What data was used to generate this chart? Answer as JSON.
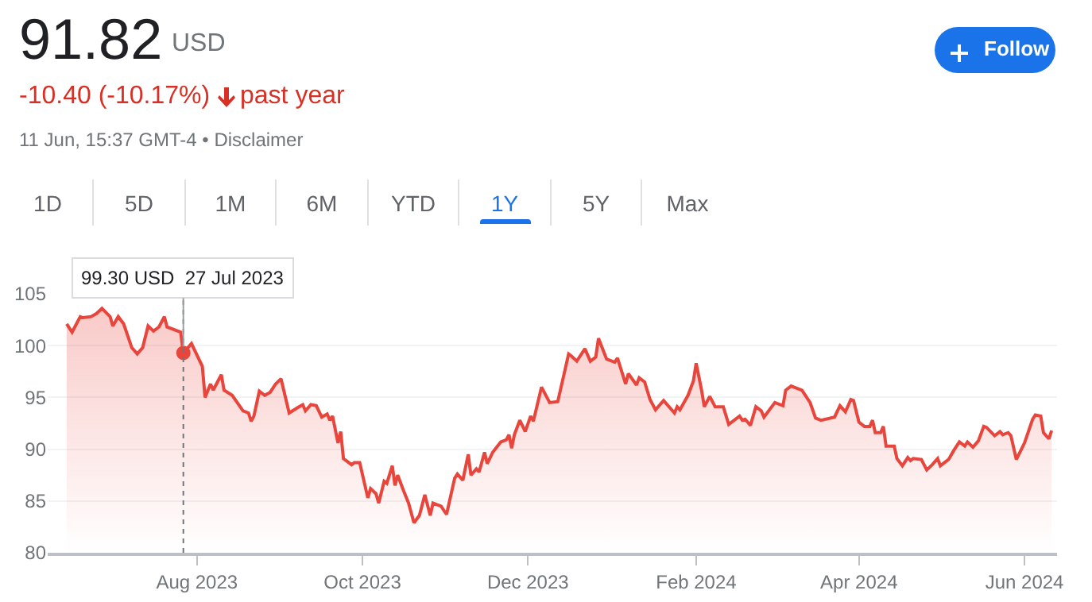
{
  "chart_data": {
    "type": "area",
    "title": "91.82",
    "subtitle": "-10.40 (-10.17%)",
    "annotations": [
      "USD",
      "past year",
      "11 Jun, 15:37 GMT-4 • Disclaimer",
      "Follow",
      "1D",
      "5D",
      "1M",
      "6M",
      "YTD",
      "1Y",
      "5Y",
      "Max",
      {
        "text": "99.30 USD  27 Jul 2023",
        "x": "2023-07-27",
        "y": 99.3
      }
    ],
    "series": [
      {
        "type": "area",
        "color": "#e8453c",
        "x": [
          "2023-06-14",
          "2023-06-16",
          "2023-06-19",
          "2023-06-20",
          "2023-06-23",
          "2023-06-25",
          "2023-06-27",
          "2023-06-30",
          "2023-07-01",
          "2023-07-03",
          "2023-07-05",
          "2023-07-08",
          "2023-07-10",
          "2023-07-12",
          "2023-07-14",
          "2023-07-16",
          "2023-07-18",
          "2023-07-20",
          "2023-07-21",
          "2023-07-25",
          "2023-07-26",
          "2023-07-27",
          "2023-07-30",
          "2023-08-03",
          "2023-08-04",
          "2023-08-06",
          "2023-08-07",
          "2023-08-10",
          "2023-08-11",
          "2023-08-14",
          "2023-08-18",
          "2023-08-20",
          "2023-08-21",
          "2023-08-22",
          "2023-08-24",
          "2023-08-26",
          "2023-08-28",
          "2023-08-30",
          "2023-09-01",
          "2023-09-04",
          "2023-09-07",
          "2023-09-09",
          "2023-09-10",
          "2023-09-12",
          "2023-09-14",
          "2023-09-16",
          "2023-09-18",
          "2023-09-19",
          "2023-09-20",
          "2023-09-22",
          "2023-09-23",
          "2023-09-24",
          "2023-09-27",
          "2023-09-28",
          "2023-09-30",
          "2023-10-03",
          "2023-10-04",
          "2023-10-06",
          "2023-10-07",
          "2023-10-09",
          "2023-10-10",
          "2023-10-12",
          "2023-10-13",
          "2023-10-14",
          "2023-10-16",
          "2023-10-18",
          "2023-10-20",
          "2023-10-22",
          "2023-10-24",
          "2023-10-26",
          "2023-10-27",
          "2023-10-30",
          "2023-11-01",
          "2023-11-04",
          "2023-11-05",
          "2023-11-07",
          "2023-11-09",
          "2023-11-10",
          "2023-11-12",
          "2023-11-13",
          "2023-11-15",
          "2023-11-16",
          "2023-11-18",
          "2023-11-21",
          "2023-11-23",
          "2023-11-24",
          "2023-11-25",
          "2023-11-26",
          "2023-11-28",
          "2023-11-30",
          "2023-12-02",
          "2023-12-03",
          "2023-12-06",
          "2023-12-09",
          "2023-12-12",
          "2023-12-16",
          "2023-12-17",
          "2023-12-19",
          "2023-12-22",
          "2023-12-24",
          "2023-12-26",
          "2023-12-27",
          "2023-12-30",
          "2024-01-02",
          "2024-01-03",
          "2024-01-06",
          "2024-01-07",
          "2024-01-10",
          "2024-01-11",
          "2024-01-13",
          "2024-01-15",
          "2024-01-17",
          "2024-01-20",
          "2024-01-24",
          "2024-01-25",
          "2024-01-26",
          "2024-01-29",
          "2024-01-31",
          "2024-02-01",
          "2024-02-03",
          "2024-02-04",
          "2024-02-06",
          "2024-02-08",
          "2024-02-11",
          "2024-02-13",
          "2024-02-17",
          "2024-02-18",
          "2024-02-19",
          "2024-02-21",
          "2024-02-23",
          "2024-02-25",
          "2024-02-26",
          "2024-03-01",
          "2024-03-04",
          "2024-03-05",
          "2024-03-07",
          "2024-03-11",
          "2024-03-14",
          "2024-03-16",
          "2024-03-18",
          "2024-03-23",
          "2024-03-25",
          "2024-03-27",
          "2024-03-29",
          "2024-03-30",
          "2024-04-01",
          "2024-04-03",
          "2024-04-05",
          "2024-04-06",
          "2024-04-07",
          "2024-04-09",
          "2024-04-10",
          "2024-04-11",
          "2024-04-14",
          "2024-04-15",
          "2024-04-17",
          "2024-04-19",
          "2024-04-20",
          "2024-04-21",
          "2024-04-24",
          "2024-04-26",
          "2024-04-28",
          "2024-04-30",
          "2024-05-01",
          "2024-05-04",
          "2024-05-06",
          "2024-05-08",
          "2024-05-10",
          "2024-05-11",
          "2024-05-13",
          "2024-05-15",
          "2024-05-17",
          "2024-05-18",
          "2024-05-21",
          "2024-05-23",
          "2024-05-24",
          "2024-05-26",
          "2024-05-27",
          "2024-05-29",
          "2024-06-01",
          "2024-06-04",
          "2024-06-05",
          "2024-06-07",
          "2024-06-08",
          "2024-06-10",
          "2024-06-11"
        ],
        "values": [
          102.1,
          101.3,
          102.8,
          102.7,
          102.8,
          103.1,
          103.6,
          102.8,
          101.9,
          102.8,
          102.1,
          99.8,
          99.2,
          99.8,
          101.9,
          101.4,
          101.8,
          102.8,
          101.8,
          101.4,
          101.3,
          99.3,
          100.2,
          98.0,
          95.0,
          96.3,
          95.7,
          97.2,
          95.7,
          95.2,
          93.7,
          93.5,
          92.7,
          93.2,
          95.6,
          95.2,
          95.5,
          96.3,
          96.8,
          93.5,
          94.0,
          94.3,
          93.7,
          94.3,
          94.2,
          93.1,
          93.4,
          92.8,
          93.2,
          90.6,
          91.7,
          89.1,
          88.5,
          88.7,
          88.7,
          85.3,
          86.2,
          85.7,
          84.8,
          86.9,
          86.7,
          88.4,
          86.5,
          87.5,
          86.1,
          84.8,
          82.9,
          83.6,
          85.6,
          83.6,
          84.8,
          84.5,
          83.7,
          87.2,
          87.6,
          87.0,
          89.5,
          87.5,
          88.1,
          87.8,
          89.7,
          88.6,
          89.7,
          90.7,
          90.9,
          91.4,
          90.1,
          91.4,
          92.8,
          91.7,
          93.2,
          92.7,
          96.0,
          94.5,
          94.6,
          99.2,
          99.0,
          98.5,
          99.7,
          98.5,
          98.9,
          100.7,
          98.7,
          98.4,
          98.8,
          96.3,
          97.3,
          96.2,
          96.9,
          96.5,
          94.8,
          93.8,
          94.7,
          93.5,
          94.1,
          93.8,
          95.2,
          96.6,
          98.3,
          95.7,
          94.1,
          95.1,
          94.1,
          94.1,
          92.4,
          93.2,
          92.8,
          92.9,
          92.3,
          94.1,
          93.7,
          93.1,
          94.5,
          94.2,
          95.7,
          96.1,
          95.7,
          94.5,
          93.0,
          92.8,
          93.1,
          94.2,
          93.6,
          94.8,
          94.7,
          92.6,
          92.2,
          92.2,
          92.8,
          91.6,
          91.6,
          92.2,
          90.3,
          90.3,
          89.1,
          88.4,
          89.2,
          88.9,
          89.1,
          89.0,
          88.0,
          88.5,
          89.1,
          88.4,
          89.0,
          89.9,
          90.7,
          90.3,
          90.7,
          90.2,
          90.8,
          92.2,
          92.1,
          91.3,
          91.7,
          91.4,
          91.6,
          91.3,
          89.0,
          90.6,
          92.9,
          93.3,
          93.2,
          91.6,
          91.0,
          91.8
        ]
      },
      {
        "type": "scatter",
        "color": "#e8453c",
        "x": [
          "2023-07-27"
        ],
        "values": [
          99.3
        ]
      }
    ],
    "xlim": [
      "2023-06-07",
      "2024-06-13"
    ],
    "xticks": [
      {
        "value": "2023-08-01",
        "label": "Aug 2023"
      },
      {
        "value": "2023-10-01",
        "label": "Oct 2023"
      },
      {
        "value": "2023-12-01",
        "label": "Dec 2023"
      },
      {
        "value": "2024-02-01",
        "label": "Feb 2024"
      },
      {
        "value": "2024-04-01",
        "label": "Apr 2024"
      },
      {
        "value": "2024-06-01",
        "label": "Jun 2024"
      }
    ],
    "ylim": [
      80,
      105
    ],
    "yticks": [
      80,
      85,
      90,
      95,
      100,
      105
    ],
    "grid": "y",
    "ref_lines": [
      {
        "axis": "x",
        "value": "2023-07-27",
        "color": "#70757a",
        "line_style": "dotted"
      }
    ]
  }
}
